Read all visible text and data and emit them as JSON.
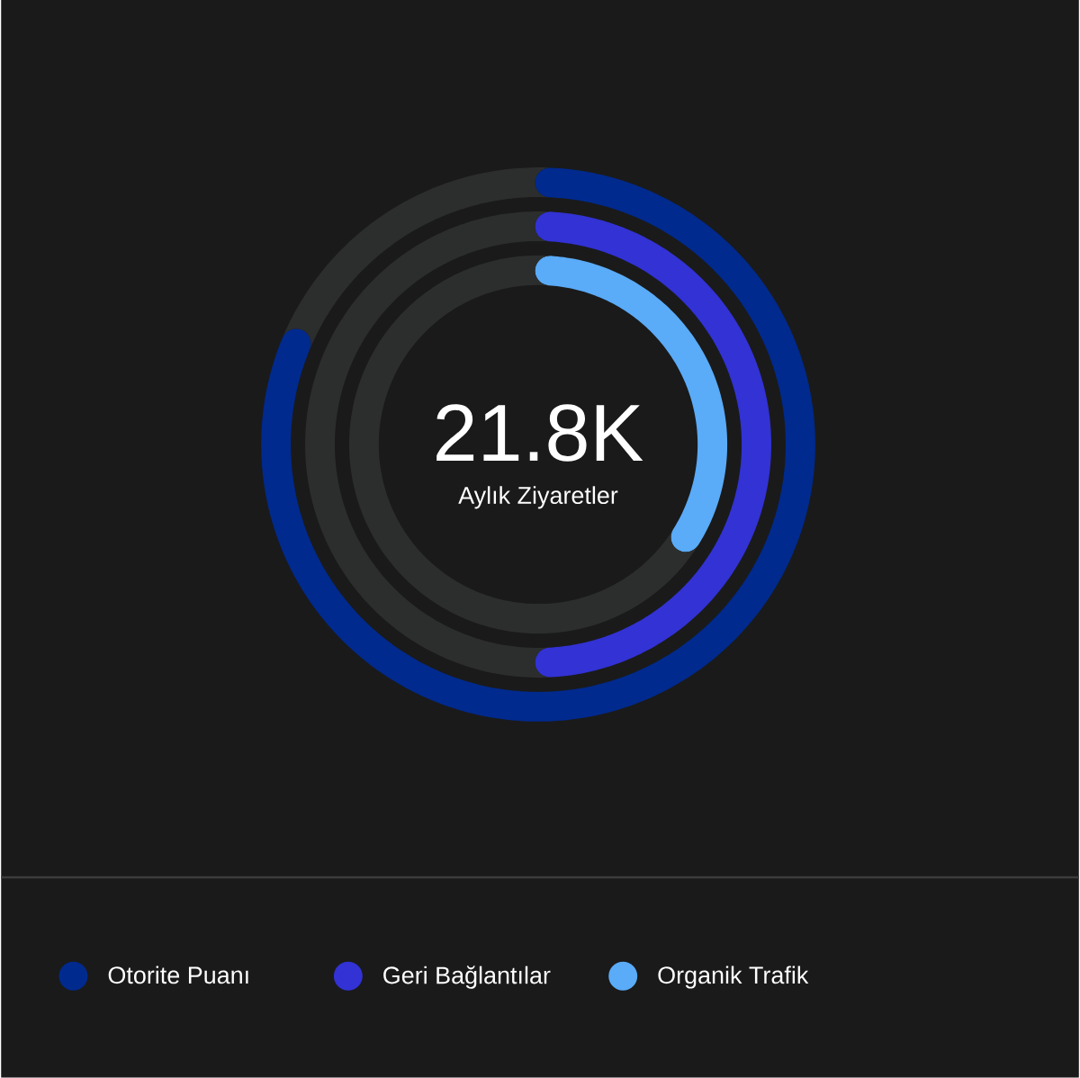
{
  "chart_data": {
    "type": "donut",
    "categories": [
      null,
      null
    ],
    "series": [
      {
        "name": "Otorite Puanı",
        "colors": [
          "#012a8e",
          "#2c2e2e"
        ],
        "values": [
          82,
          18
        ]
      },
      {
        "name": "Geri Bağlantılar",
        "colors": [
          "#3232d5",
          "#2c2e2e"
        ],
        "values": [
          50,
          50
        ]
      },
      {
        "name": "Organik Trafik",
        "colors": [
          "#5aabf8",
          "#2c2e2e"
        ],
        "values": [
          35,
          65
        ]
      }
    ],
    "annotations": [
      "21.8K",
      "Aylık Ziyaretler"
    ],
    "legend": "bottom"
  }
}
